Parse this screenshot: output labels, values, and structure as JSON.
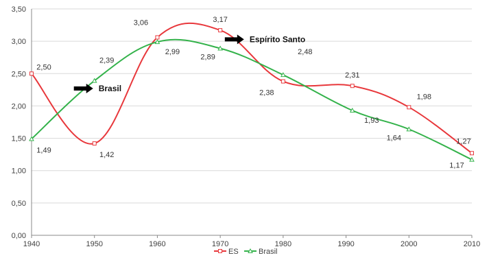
{
  "chart_data": {
    "type": "line",
    "title": "",
    "xlabel": "",
    "ylabel": "",
    "x": [
      1940,
      1950,
      1960,
      1970,
      1980,
      1991,
      2000,
      2010
    ],
    "x_ticks": [
      "1940",
      "1950",
      "1960",
      "1970",
      "1980",
      "1990",
      "2000",
      "2010"
    ],
    "x_tick_values": [
      1940,
      1950,
      1960,
      1970,
      1980,
      1990,
      2000,
      2010
    ],
    "xlim": [
      1940,
      2010
    ],
    "ylim": [
      0,
      3.5
    ],
    "y_ticks": [
      "0,00",
      "0,50",
      "1,00",
      "1,50",
      "2,00",
      "2,50",
      "3,00",
      "3,50"
    ],
    "y_tick_values": [
      0,
      0.5,
      1,
      1.5,
      2,
      2.5,
      3,
      3.5
    ],
    "grid": true,
    "legend": "bottom",
    "smooth": true,
    "series": [
      {
        "name": "ES",
        "color": "#e8373b",
        "marker": "square",
        "values": [
          2.5,
          1.42,
          3.06,
          3.17,
          2.38,
          2.31,
          1.98,
          1.27
        ],
        "labels": [
          "2,50",
          "1,42",
          "3,06",
          "3,17",
          "2,38",
          "2,31",
          "1,98",
          "1,27"
        ]
      },
      {
        "name": "Brasil",
        "color": "#33b24a",
        "marker": "triangle",
        "values": [
          1.49,
          2.39,
          2.99,
          2.89,
          2.48,
          1.93,
          1.64,
          1.17
        ],
        "labels": [
          "1,49",
          "2,39",
          "2,99",
          "2,89",
          "2,48",
          "1,93",
          "1,64",
          "1,17"
        ]
      }
    ],
    "annotations": [
      {
        "text": "Espírito Santo",
        "arrow": "right",
        "x": 1974,
        "y": 3.03
      },
      {
        "text": "Brasil",
        "arrow": "right",
        "x": 1950,
        "y": 2.27
      }
    ]
  }
}
